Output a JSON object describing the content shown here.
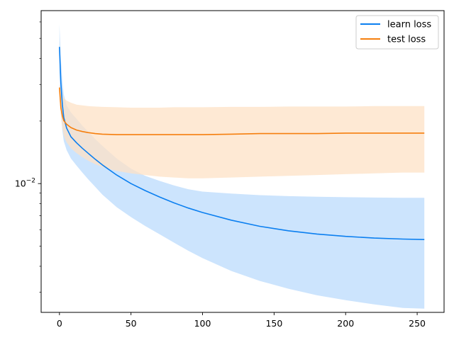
{
  "chart_data": {
    "type": "line",
    "title": "",
    "xlabel": "",
    "ylabel": "",
    "xlim": [
      -12.8,
      268.8
    ],
    "ylim": [
      0.0024,
      0.068
    ],
    "yscale": "log",
    "x_ticks": [
      0,
      50,
      100,
      150,
      200,
      250
    ],
    "y_major_ticks": [
      {
        "value": 0.01,
        "base": "10",
        "exp": "−2"
      }
    ],
    "y_minor_ticks": [
      0.003,
      0.004,
      0.005,
      0.006,
      0.007,
      0.008,
      0.009,
      0.02,
      0.03,
      0.04,
      0.05,
      0.06
    ],
    "grid": false,
    "legend_position": "upper right",
    "series": [
      {
        "name": "learn loss",
        "color": "#0b7ff0",
        "band_color": "#cce4fd",
        "x": [
          0,
          1,
          2,
          3,
          5,
          8,
          12,
          16,
          20,
          25,
          30,
          40,
          50,
          60,
          70,
          80,
          90,
          100,
          120,
          140,
          160,
          180,
          200,
          220,
          240,
          255
        ],
        "mean": [
          0.0455,
          0.0305,
          0.024,
          0.0208,
          0.0185,
          0.0168,
          0.0157,
          0.0148,
          0.014,
          0.0131,
          0.0123,
          0.011,
          0.01,
          0.00925,
          0.00862,
          0.00808,
          0.00763,
          0.00726,
          0.00667,
          0.00623,
          0.00593,
          0.00572,
          0.00557,
          0.00547,
          0.00541,
          0.00538
        ],
        "upper": [
          0.0585,
          0.0398,
          0.031,
          0.0268,
          0.0238,
          0.022,
          0.0205,
          0.019,
          0.0178,
          0.0164,
          0.0152,
          0.0132,
          0.0118,
          0.0109,
          0.0103,
          0.0098,
          0.0094,
          0.00915,
          0.00895,
          0.0088,
          0.0087,
          0.00864,
          0.0086,
          0.00857,
          0.00855,
          0.00855
        ],
        "lower": [
          0.034,
          0.022,
          0.018,
          0.016,
          0.0145,
          0.0132,
          0.0122,
          0.0113,
          0.0105,
          0.00965,
          0.00885,
          0.0077,
          0.0069,
          0.00625,
          0.0057,
          0.0052,
          0.00475,
          0.00438,
          0.0038,
          0.0034,
          0.00312,
          0.0029,
          0.00275,
          0.00262,
          0.00252,
          0.0025
        ]
      },
      {
        "name": "test loss",
        "color": "#f57f0e",
        "band_color": "#fde1c6",
        "x": [
          0,
          1,
          2,
          3,
          5,
          8,
          12,
          16,
          20,
          25,
          30,
          40,
          50,
          60,
          70,
          80,
          90,
          100,
          120,
          140,
          160,
          180,
          200,
          220,
          240,
          255
        ],
        "mean": [
          0.029,
          0.0232,
          0.0212,
          0.0201,
          0.0193,
          0.0186,
          0.0181,
          0.0178,
          0.0176,
          0.0174,
          0.0173,
          0.0172,
          0.0172,
          0.0172,
          0.0172,
          0.0172,
          0.0172,
          0.0172,
          0.0173,
          0.0174,
          0.0174,
          0.0174,
          0.0175,
          0.0175,
          0.0175,
          0.0175
        ],
        "upper": [
          0.03,
          0.0282,
          0.0266,
          0.0258,
          0.0251,
          0.0245,
          0.024,
          0.0238,
          0.0236,
          0.0235,
          0.0234,
          0.0233,
          0.0232,
          0.0232,
          0.0232,
          0.0233,
          0.0233,
          0.0233,
          0.0234,
          0.0234,
          0.0235,
          0.0235,
          0.0235,
          0.0236,
          0.0236,
          0.0236
        ],
        "lower": [
          0.0265,
          0.0212,
          0.0185,
          0.017,
          0.0158,
          0.0148,
          0.014,
          0.0134,
          0.0129,
          0.0124,
          0.012,
          0.0115,
          0.0112,
          0.011,
          0.0108,
          0.0107,
          0.0106,
          0.0106,
          0.0107,
          0.0108,
          0.0109,
          0.011,
          0.0111,
          0.0112,
          0.0113,
          0.0113
        ]
      }
    ]
  }
}
